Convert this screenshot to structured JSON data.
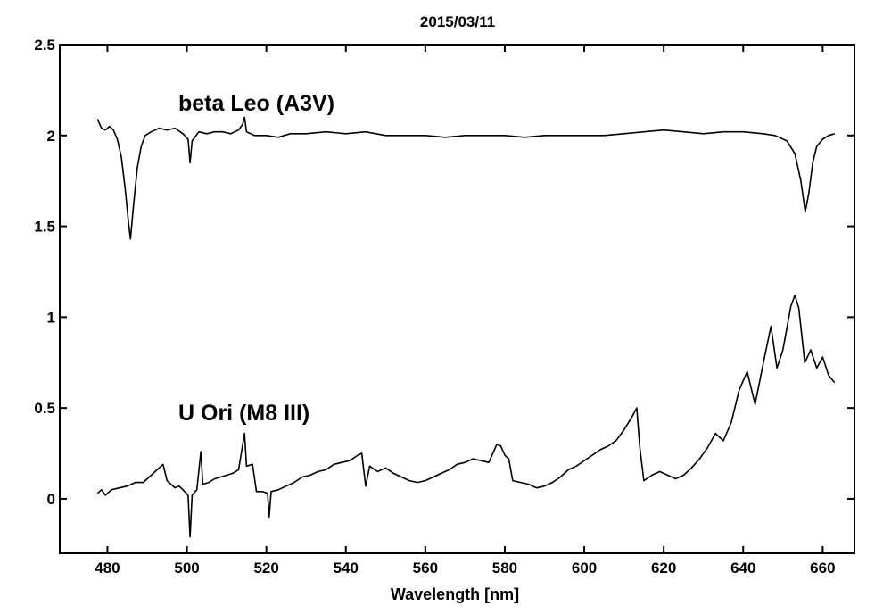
{
  "chart_data": {
    "type": "line",
    "title": "2015/03/11",
    "xlabel": "Wavelength [nm]",
    "ylabel": "",
    "xlim": [
      468,
      668
    ],
    "ylim": [
      -0.3,
      2.5
    ],
    "xticks": [
      480,
      500,
      520,
      540,
      560,
      580,
      600,
      620,
      640,
      660
    ],
    "yticks": [
      0,
      0.5,
      1,
      1.5,
      2,
      2.5
    ],
    "ytick_labels": [
      "0",
      "0.5",
      "1",
      "1.5",
      "2",
      "2.5"
    ],
    "grid": false,
    "line_color": "#000000",
    "annotations": [
      {
        "text": "beta Leo (A3V)",
        "x": 481,
        "y": 2.17
      },
      {
        "text": "U Ori (M8 III)",
        "x": 481,
        "y": 0.41
      }
    ],
    "series": [
      {
        "points": [
          [
            477.5,
            2.09
          ],
          [
            478.5,
            2.04
          ],
          [
            479.5,
            2.03
          ],
          [
            480.5,
            2.05
          ],
          [
            481.5,
            2.03
          ],
          [
            482.5,
            1.98
          ],
          [
            483.5,
            1.88
          ],
          [
            484.5,
            1.7
          ],
          [
            485.3,
            1.52
          ],
          [
            485.8,
            1.43
          ],
          [
            486.5,
            1.6
          ],
          [
            487.5,
            1.82
          ],
          [
            488.5,
            1.94
          ],
          [
            489.5,
            2.0
          ],
          [
            491,
            2.02
          ],
          [
            493,
            2.04
          ],
          [
            495,
            2.03
          ],
          [
            497,
            2.04
          ],
          [
            499,
            2.01
          ],
          [
            500.3,
            1.98
          ],
          [
            500.8,
            1.85
          ],
          [
            501.3,
            1.97
          ],
          [
            503,
            2.02
          ],
          [
            505,
            2.01
          ],
          [
            507,
            2.02
          ],
          [
            509,
            2.02
          ],
          [
            511,
            2.01
          ],
          [
            513,
            2.03
          ],
          [
            514,
            2.06
          ],
          [
            514.5,
            2.1
          ],
          [
            515,
            2.02
          ],
          [
            517,
            2.0
          ],
          [
            520,
            2.0
          ],
          [
            523,
            1.99
          ],
          [
            526,
            2.01
          ],
          [
            530,
            2.01
          ],
          [
            535,
            2.02
          ],
          [
            540,
            2.01
          ],
          [
            545,
            2.02
          ],
          [
            550,
            2.0
          ],
          [
            555,
            2.0
          ],
          [
            560,
            2.0
          ],
          [
            565,
            1.99
          ],
          [
            570,
            2.0
          ],
          [
            575,
            2.0
          ],
          [
            580,
            2.0
          ],
          [
            585,
            1.99
          ],
          [
            590,
            2.0
          ],
          [
            595,
            2.0
          ],
          [
            600,
            2.0
          ],
          [
            605,
            2.0
          ],
          [
            610,
            2.01
          ],
          [
            615,
            2.02
          ],
          [
            620,
            2.03
          ],
          [
            625,
            2.02
          ],
          [
            630,
            2.01
          ],
          [
            635,
            2.02
          ],
          [
            640,
            2.02
          ],
          [
            645,
            2.01
          ],
          [
            648,
            2.0
          ],
          [
            651,
            1.97
          ],
          [
            653,
            1.9
          ],
          [
            654.5,
            1.75
          ],
          [
            655.6,
            1.58
          ],
          [
            656.5,
            1.68
          ],
          [
            657.5,
            1.85
          ],
          [
            658.5,
            1.94
          ],
          [
            660,
            1.98
          ],
          [
            661.5,
            2.0
          ],
          [
            663,
            2.01
          ]
        ]
      },
      {
        "points": [
          [
            477.5,
            0.03
          ],
          [
            478.5,
            0.05
          ],
          [
            479.5,
            0.02
          ],
          [
            481,
            0.05
          ],
          [
            483,
            0.06
          ],
          [
            485,
            0.07
          ],
          [
            487,
            0.09
          ],
          [
            489,
            0.09
          ],
          [
            491,
            0.13
          ],
          [
            493,
            0.17
          ],
          [
            494,
            0.19
          ],
          [
            495,
            0.1
          ],
          [
            496,
            0.08
          ],
          [
            497,
            0.06
          ],
          [
            498,
            0.07
          ],
          [
            499,
            0.05
          ],
          [
            500.3,
            0.02
          ],
          [
            500.8,
            -0.21
          ],
          [
            501.3,
            0.02
          ],
          [
            502.5,
            0.05
          ],
          [
            503.5,
            0.26
          ],
          [
            504,
            0.08
          ],
          [
            505.5,
            0.09
          ],
          [
            507,
            0.11
          ],
          [
            508.5,
            0.12
          ],
          [
            510,
            0.13
          ],
          [
            511.5,
            0.14
          ],
          [
            513,
            0.16
          ],
          [
            514.5,
            0.36
          ],
          [
            515,
            0.18
          ],
          [
            516.5,
            0.19
          ],
          [
            517.5,
            0.04
          ],
          [
            519,
            0.04
          ],
          [
            520.3,
            0.03
          ],
          [
            520.7,
            -0.1
          ],
          [
            521.2,
            0.04
          ],
          [
            523,
            0.05
          ],
          [
            525,
            0.07
          ],
          [
            527,
            0.09
          ],
          [
            529,
            0.12
          ],
          [
            531,
            0.13
          ],
          [
            533,
            0.15
          ],
          [
            535,
            0.16
          ],
          [
            537,
            0.19
          ],
          [
            539,
            0.2
          ],
          [
            541,
            0.21
          ],
          [
            543,
            0.24
          ],
          [
            544,
            0.25
          ],
          [
            545,
            0.07
          ],
          [
            546,
            0.18
          ],
          [
            548,
            0.15
          ],
          [
            550,
            0.17
          ],
          [
            552,
            0.14
          ],
          [
            554,
            0.12
          ],
          [
            556,
            0.1
          ],
          [
            558,
            0.09
          ],
          [
            560,
            0.1
          ],
          [
            562,
            0.12
          ],
          [
            564,
            0.14
          ],
          [
            566,
            0.16
          ],
          [
            568,
            0.19
          ],
          [
            570,
            0.2
          ],
          [
            572,
            0.22
          ],
          [
            574,
            0.21
          ],
          [
            576,
            0.2
          ],
          [
            578,
            0.3
          ],
          [
            579,
            0.29
          ],
          [
            580,
            0.24
          ],
          [
            581,
            0.22
          ],
          [
            582,
            0.1
          ],
          [
            584,
            0.09
          ],
          [
            586,
            0.08
          ],
          [
            588,
            0.06
          ],
          [
            590,
            0.07
          ],
          [
            592,
            0.09
          ],
          [
            594,
            0.12
          ],
          [
            596,
            0.16
          ],
          [
            598,
            0.18
          ],
          [
            600,
            0.21
          ],
          [
            602,
            0.24
          ],
          [
            604,
            0.27
          ],
          [
            606,
            0.29
          ],
          [
            608,
            0.32
          ],
          [
            610,
            0.38
          ],
          [
            612,
            0.45
          ],
          [
            613.2,
            0.5
          ],
          [
            614,
            0.28
          ],
          [
            615,
            0.1
          ],
          [
            617,
            0.13
          ],
          [
            619,
            0.15
          ],
          [
            621,
            0.13
          ],
          [
            623,
            0.11
          ],
          [
            625,
            0.13
          ],
          [
            627,
            0.17
          ],
          [
            629,
            0.22
          ],
          [
            631,
            0.28
          ],
          [
            633,
            0.36
          ],
          [
            635,
            0.32
          ],
          [
            637,
            0.42
          ],
          [
            639,
            0.6
          ],
          [
            641,
            0.7
          ],
          [
            643,
            0.52
          ],
          [
            645,
            0.74
          ],
          [
            647,
            0.95
          ],
          [
            648.5,
            0.72
          ],
          [
            650,
            0.82
          ],
          [
            652,
            1.06
          ],
          [
            653,
            1.12
          ],
          [
            654,
            1.05
          ],
          [
            655.5,
            0.75
          ],
          [
            657,
            0.82
          ],
          [
            658.5,
            0.72
          ],
          [
            660,
            0.78
          ],
          [
            661.5,
            0.68
          ],
          [
            663,
            0.64
          ]
        ]
      }
    ]
  }
}
